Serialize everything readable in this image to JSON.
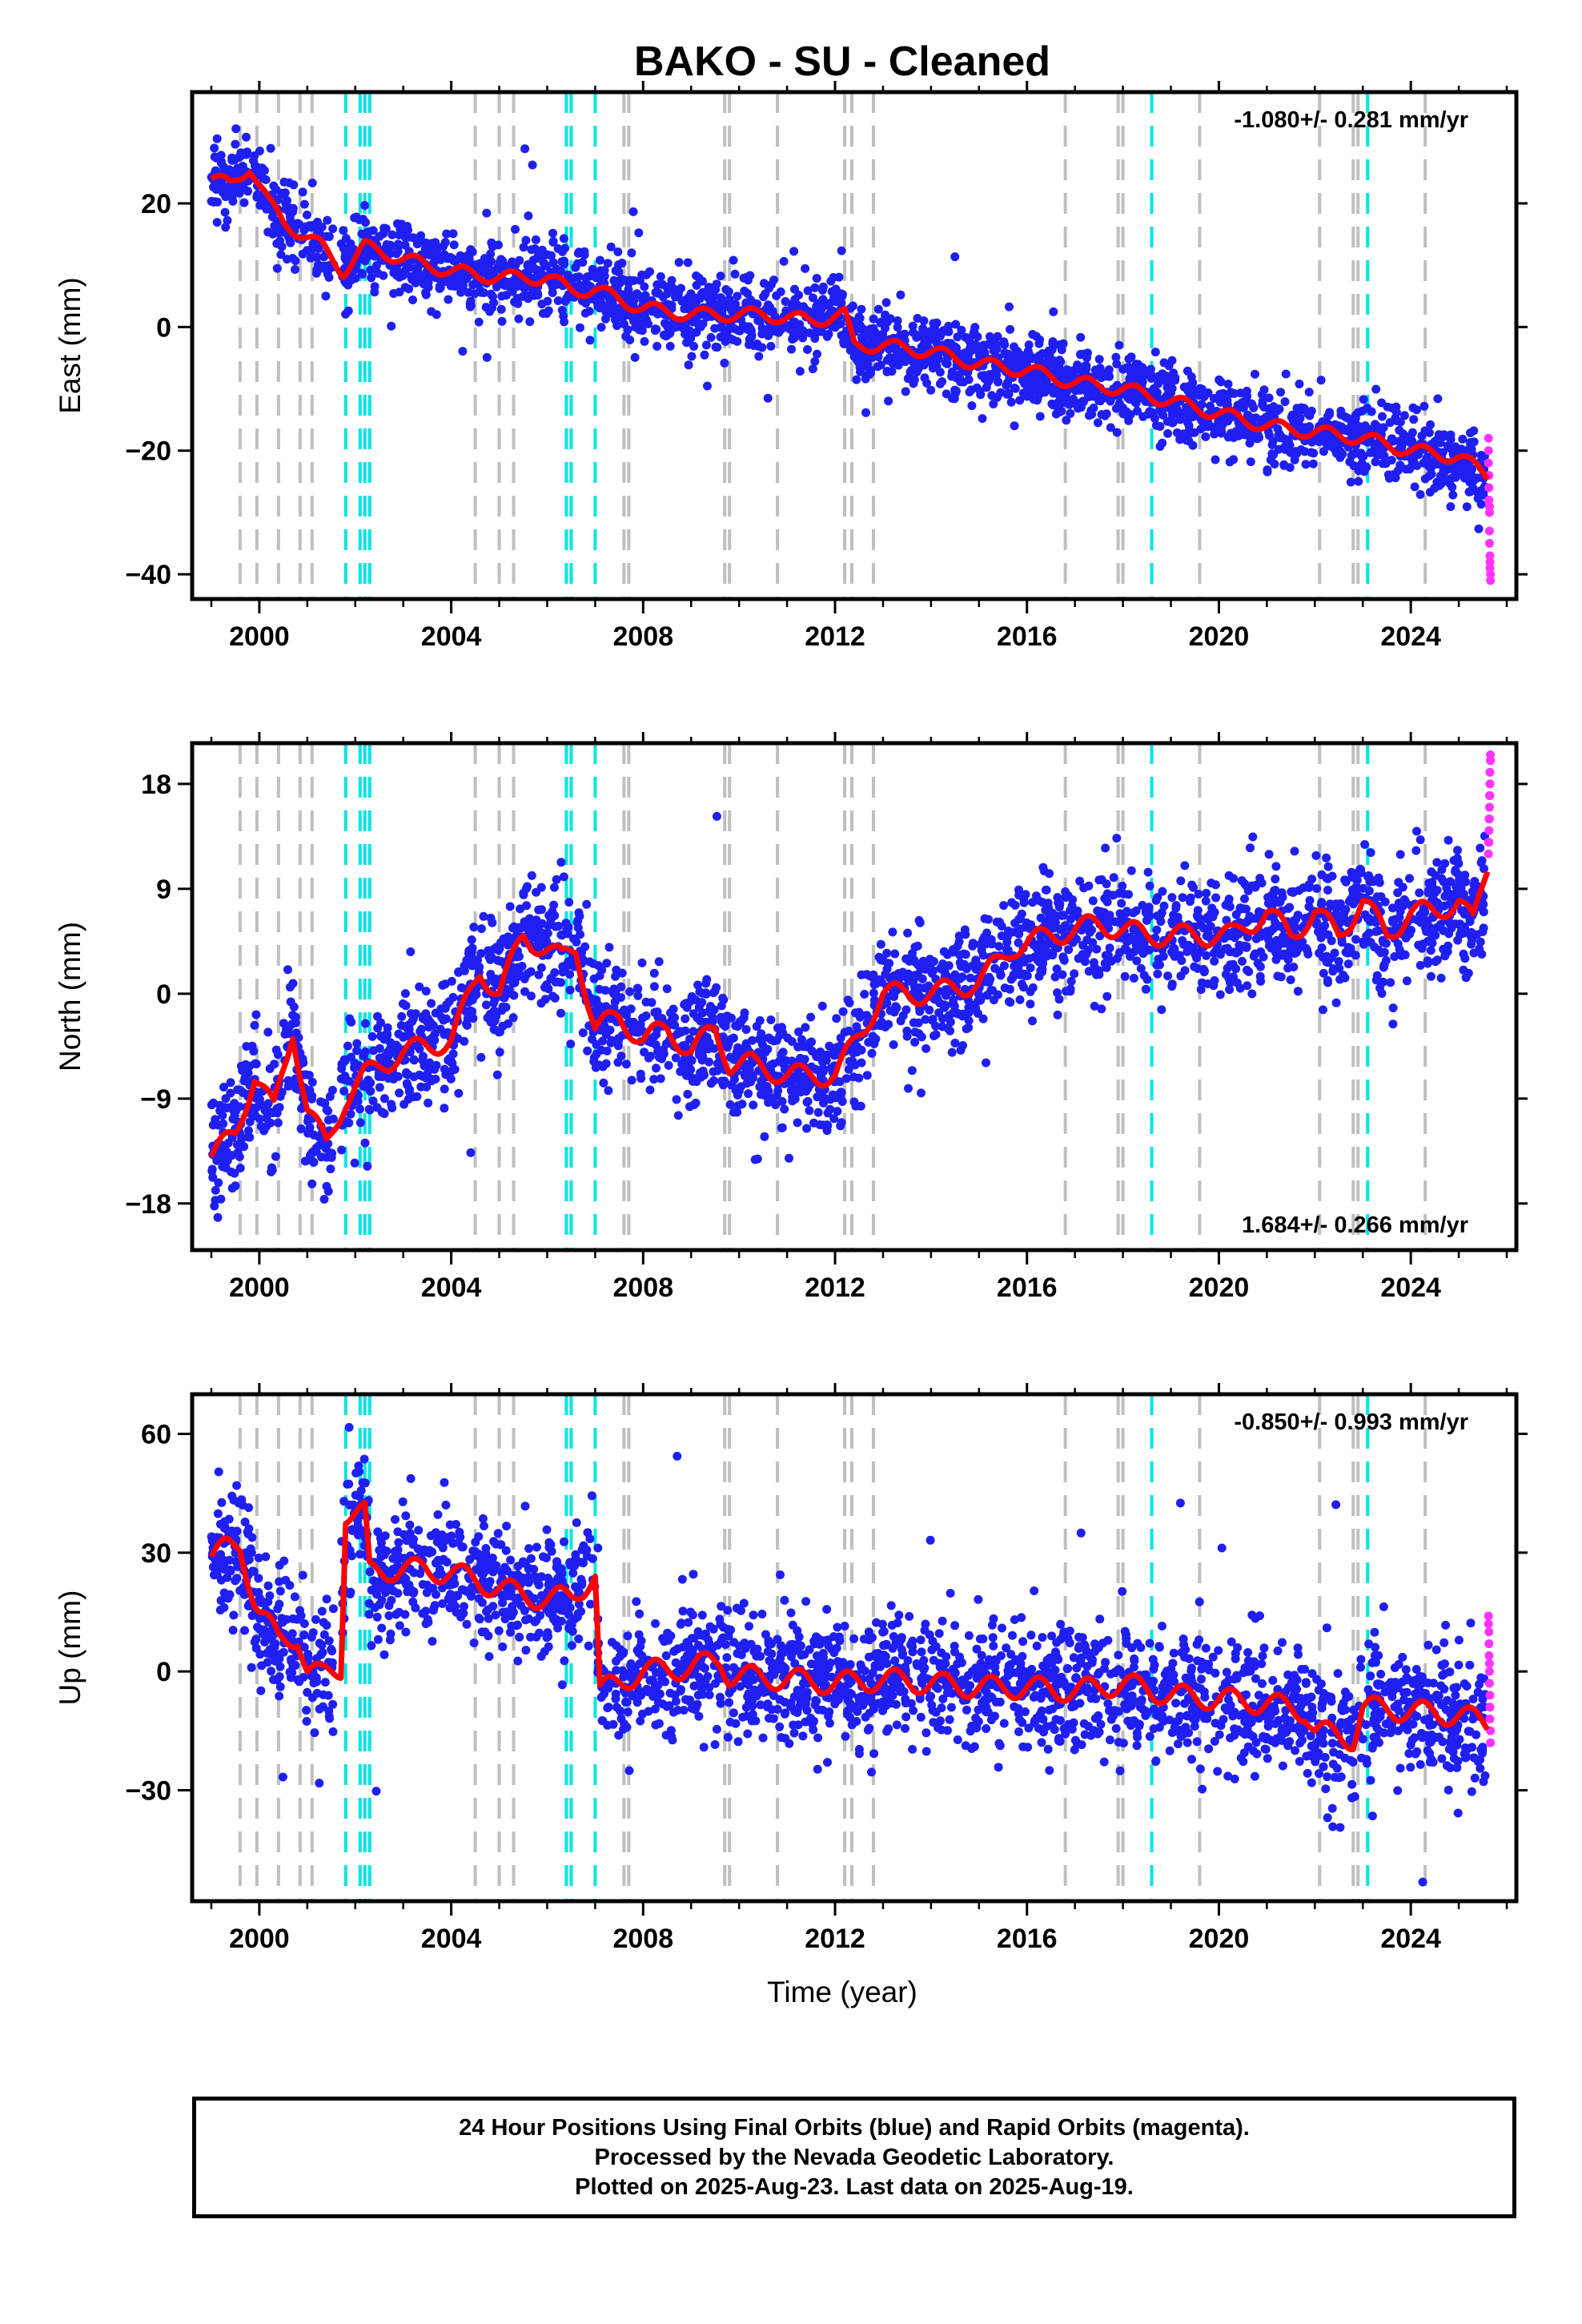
{
  "title": "BAKO  - SU - Cleaned",
  "xlabel": "Time (year)",
  "footer": {
    "line1": "24 Hour Positions Using Final Orbits (blue) and Rapid Orbits (magenta).",
    "line2": "Processed by the Nevada Geodetic Laboratory.",
    "line3": "Plotted on 2025-Aug-23. Last data on 2025-Aug-19."
  },
  "colors": {
    "final_orbits": "#1f1ff2",
    "rapid_orbits": "#ff33ff",
    "model": "#ff0000",
    "antenna_change": "#bfbfbf",
    "equipment_change": "#00e5e5"
  },
  "chart_data": [
    {
      "type": "scatter",
      "ylabel": "East (mm)",
      "rate": "-1.080+/- 0.281 mm/yr",
      "rate_position": "top-right",
      "xlim": [
        1998.6,
        2026.2
      ],
      "ylim": [
        -44,
        38
      ],
      "xticks": [
        2000,
        2004,
        2008,
        2012,
        2016,
        2020,
        2024
      ],
      "yticks": [
        -40,
        -20,
        0,
        20
      ],
      "grid": false,
      "model_knots": {
        "x": [
          1999.0,
          1999.4,
          1999.8,
          2000.2,
          2000.5,
          2000.9,
          2001.3,
          2001.75,
          2002.2,
          2003.0,
          2004.0,
          2005.0,
          2006.0,
          2006.5,
          2007.0,
          2008.0,
          2009.0,
          2009.8,
          2010.5,
          2011.5,
          2012.2,
          2012.4,
          2013.0,
          2014.0,
          2015.0,
          2016.0,
          2017.0,
          2018.0,
          2019.0,
          2020.0,
          2021.0,
          2022.0,
          2023.0,
          2024.0,
          2025.0,
          2025.6
        ],
        "y": [
          24,
          23,
          26,
          20,
          17,
          15,
          13,
          9,
          13,
          11,
          9,
          8,
          8,
          6,
          6,
          3,
          2,
          2,
          2,
          1,
          2,
          -3,
          -3,
          -4,
          -6,
          -7,
          -9,
          -10,
          -12,
          -14,
          -16,
          -17,
          -18,
          -20,
          -21,
          -24
        ]
      },
      "final_orbit_trend": {
        "start_year": 1999.0,
        "end_year": 2025.55,
        "y_start": 23,
        "y_end": -23,
        "scatter_sd": 3
      },
      "rapid_orbit_points": {
        "x": [
          2025.62,
          2025.62,
          2025.62,
          2025.63,
          2025.63,
          2025.63,
          2025.64,
          2025.64,
          2025.64,
          2025.64,
          2025.65,
          2025.65,
          2025.65,
          2025.66,
          2025.66
        ],
        "y": [
          -18,
          -20,
          -22,
          -24,
          -26,
          -28,
          -29,
          -30,
          -33,
          -35,
          -37,
          -38,
          -39,
          -40,
          -41
        ]
      },
      "antenna_changes": [
        1999.6,
        1999.95,
        2000.4,
        2000.85,
        2001.1,
        2004.5,
        2005.0,
        2005.3,
        2007.6,
        2007.7,
        2009.7,
        2009.8,
        2010.8,
        2012.2,
        2012.35,
        2012.8,
        2016.8,
        2017.9,
        2018.0,
        2019.6,
        2022.1,
        2022.8,
        2022.9,
        2024.3
      ],
      "equipment_changes": [
        2001.8,
        2002.1,
        2002.2,
        2002.3,
        2006.4,
        2006.5,
        2007.0,
        2018.6,
        2023.1
      ]
    },
    {
      "type": "scatter",
      "ylabel": "North (mm)",
      "rate": "1.684+/- 0.266 mm/yr",
      "rate_position": "bottom-right",
      "xlim": [
        1998.6,
        2026.2
      ],
      "ylim": [
        -22,
        21.5
      ],
      "xticks": [
        2000,
        2004,
        2008,
        2012,
        2016,
        2020,
        2024
      ],
      "yticks": [
        -18,
        -9,
        0,
        9,
        18
      ],
      "grid": false,
      "model_knots": {
        "x": [
          1999.0,
          1999.5,
          1999.9,
          2000.3,
          2000.7,
          2001.0,
          2001.4,
          2001.8,
          2002.2,
          2003.0,
          2004.0,
          2004.6,
          2005.0,
          2005.5,
          2006.3,
          2006.6,
          2007.0,
          2007.5,
          2008.0,
          2008.5,
          2009.0,
          2009.5,
          2009.8,
          2010.2,
          2011.0,
          2012.0,
          2012.3,
          2013.0,
          2014.0,
          2015.0,
          2015.7,
          2016.5,
          2017.5,
          2018.5,
          2019.5,
          2020.3,
          2021.0,
          2021.5,
          2022.0,
          2022.5,
          2023.0,
          2023.5,
          2024.0,
          2024.5,
          2025.0,
          2025.3,
          2025.6
        ],
        "y": [
          -14,
          -12,
          -7,
          -10,
          -3,
          -10,
          -13,
          -9,
          -7,
          -5,
          -4,
          2,
          0,
          5,
          3,
          4,
          -3,
          -2,
          -4,
          -3,
          -5,
          -3,
          -6,
          -6,
          -7,
          -7,
          -5,
          0,
          0,
          1,
          4,
          5,
          6,
          5,
          5,
          5,
          7,
          5,
          7,
          5,
          8,
          5,
          7,
          7,
          8,
          6,
          11
        ]
      },
      "final_orbit_trend": {
        "start_year": 1999.0,
        "end_year": 2025.55,
        "y_start": -13,
        "y_end": 7,
        "scatter_sd": 2.6
      },
      "rapid_orbit_points": {
        "x": [
          2025.62,
          2025.62,
          2025.63,
          2025.63,
          2025.63,
          2025.64,
          2025.64,
          2025.64,
          2025.65,
          2025.65,
          2025.65,
          2025.66,
          2025.66
        ],
        "y": [
          12,
          13,
          13,
          14,
          15,
          15,
          16,
          17,
          17,
          18,
          19,
          20,
          20.5
        ]
      },
      "antenna_changes": [
        1999.6,
        1999.95,
        2000.4,
        2000.85,
        2001.1,
        2004.5,
        2005.0,
        2005.3,
        2007.6,
        2007.7,
        2009.7,
        2009.8,
        2010.8,
        2012.2,
        2012.35,
        2012.8,
        2016.8,
        2017.9,
        2018.0,
        2019.6,
        2022.1,
        2022.8,
        2022.9,
        2024.3
      ],
      "equipment_changes": [
        2001.8,
        2002.1,
        2002.2,
        2002.3,
        2006.4,
        2006.5,
        2007.0,
        2018.6,
        2023.1
      ]
    },
    {
      "type": "scatter",
      "ylabel": "Up (mm)",
      "rate": "-0.850+/- 0.993 mm/yr",
      "rate_position": "top-right",
      "xlim": [
        1998.6,
        2026.2
      ],
      "ylim": [
        -58,
        70
      ],
      "xticks": [
        2000,
        2004,
        2008,
        2012,
        2016,
        2020,
        2024
      ],
      "yticks": [
        -30,
        0,
        30,
        60
      ],
      "grid": false,
      "model_knots": {
        "x": [
          1999.0,
          1999.3,
          1999.6,
          1999.9,
          2000.0,
          2000.4,
          2000.8,
          2001.0,
          2001.3,
          2001.7,
          2001.8,
          2002.2,
          2002.3,
          2003.0,
          2004.0,
          2005.0,
          2006.0,
          2006.5,
          2007.0,
          2007.1,
          2008.0,
          2009.0,
          2009.6,
          2009.8,
          2011.0,
          2012.0,
          2013.0,
          2014.0,
          2015.0,
          2016.0,
          2017.0,
          2018.0,
          2019.0,
          2020.0,
          2021.0,
          2021.8,
          2022.0,
          2022.8,
          2023.0,
          2024.0,
          2025.0,
          2025.6
        ],
        "y": [
          29,
          31,
          32,
          18,
          15,
          8,
          9,
          0,
          -1,
          1,
          40,
          40,
          25,
          26,
          25,
          21,
          18,
          19,
          24,
          -5,
          0,
          1,
          3,
          -1,
          -2,
          -3,
          -2,
          -3,
          -4,
          -4,
          -5,
          -3,
          -6,
          -7,
          -8,
          -10,
          -15,
          -17,
          -9,
          -10,
          -11,
          -13
        ]
      },
      "final_orbit_trend": {
        "start_year": 1999.0,
        "end_year": 2025.55,
        "y_start": 28,
        "y_end": -12,
        "scatter_sd": 8
      },
      "rapid_orbit_points": {
        "x": [
          2025.62,
          2025.62,
          2025.63,
          2025.63,
          2025.63,
          2025.64,
          2025.64,
          2025.64,
          2025.65,
          2025.65,
          2025.65,
          2025.66,
          2025.66
        ],
        "y": [
          14,
          12,
          10,
          7,
          4,
          2,
          0,
          -3,
          -6,
          -9,
          -12,
          -15,
          -18
        ]
      },
      "antenna_changes": [
        1999.6,
        1999.95,
        2000.4,
        2000.85,
        2001.1,
        2004.5,
        2005.0,
        2005.3,
        2007.6,
        2007.7,
        2009.7,
        2009.8,
        2010.8,
        2012.2,
        2012.35,
        2012.8,
        2016.8,
        2017.9,
        2018.0,
        2019.6,
        2022.1,
        2022.8,
        2022.9,
        2024.3
      ],
      "equipment_changes": [
        2001.8,
        2002.1,
        2002.2,
        2002.3,
        2006.4,
        2006.5,
        2007.0,
        2018.6,
        2023.1
      ]
    }
  ]
}
